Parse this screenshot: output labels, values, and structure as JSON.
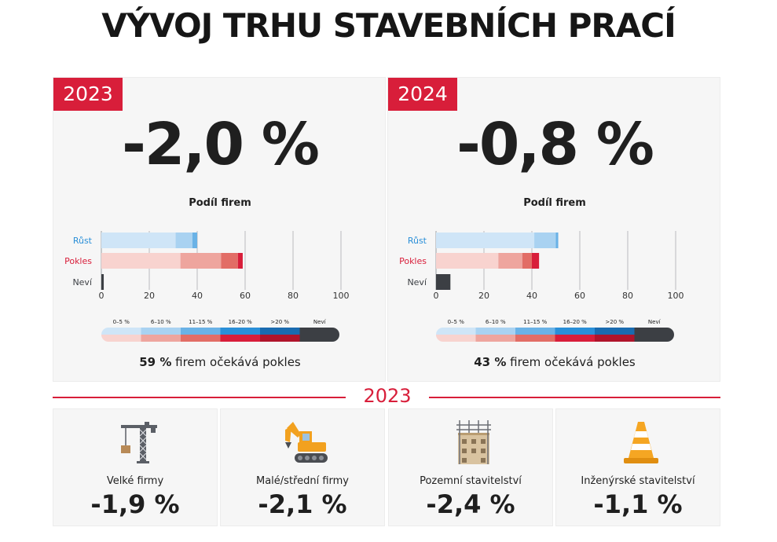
{
  "title": "VÝVOJ TRHU STAVEBNÍCH PRACÍ",
  "colors": {
    "accent_red": "#d81e3a",
    "growth_blue": "#2a8fd8",
    "dark_gray": "#3c3f44"
  },
  "panels": [
    {
      "year": "2023",
      "value": "-2,0 %",
      "share_label": "Podíl firem",
      "summary_bold": "59 %",
      "summary_rest": " firem očekává pokles"
    },
    {
      "year": "2024",
      "value": "-0,8 %",
      "share_label": "Podíl firem",
      "summary_bold": "43 %",
      "summary_rest": " firem očekává pokles"
    }
  ],
  "chart_data": [
    {
      "type": "bar",
      "orientation": "horizontal",
      "stacked": true,
      "xlabel": "",
      "ylabel": "",
      "xlim": [
        0,
        100
      ],
      "ticks": [
        0,
        20,
        40,
        60,
        80,
        100
      ],
      "categories": [
        "Růst",
        "Pokles",
        "Neví"
      ],
      "category_colors": [
        "#2a8fd8",
        "#d81e3a",
        "#3c3f44"
      ],
      "legend": [
        "0–5 %",
        "6–10 %",
        "11–15 %",
        "16–20 %",
        ">20 %",
        "Neví"
      ],
      "series": [
        {
          "name": "0–5 %",
          "values": [
            31,
            33,
            0
          ]
        },
        {
          "name": "6–10 %",
          "values": [
            7,
            17,
            0
          ]
        },
        {
          "name": "11–15 %",
          "values": [
            2,
            7,
            0
          ]
        },
        {
          "name": "16–20 %",
          "values": [
            0,
            2,
            0
          ]
        },
        {
          "name": ">20 %",
          "values": [
            0,
            0,
            0
          ]
        },
        {
          "name": "Neví",
          "values": [
            0,
            0,
            1
          ]
        }
      ]
    },
    {
      "type": "bar",
      "orientation": "horizontal",
      "stacked": true,
      "xlabel": "",
      "ylabel": "",
      "xlim": [
        0,
        100
      ],
      "ticks": [
        0,
        20,
        40,
        60,
        80,
        100
      ],
      "categories": [
        "Růst",
        "Pokles",
        "Neví"
      ],
      "category_colors": [
        "#2a8fd8",
        "#d81e3a",
        "#3c3f44"
      ],
      "legend": [
        "0–5 %",
        "6–10 %",
        "11–15 %",
        "16–20 %",
        ">20 %",
        "Neví"
      ],
      "series": [
        {
          "name": "0–5 %",
          "values": [
            41,
            26,
            0
          ]
        },
        {
          "name": "6–10 %",
          "values": [
            9,
            10,
            0
          ]
        },
        {
          "name": "11–15 %",
          "values": [
            1,
            4,
            0
          ]
        },
        {
          "name": "16–20 %",
          "values": [
            0,
            3,
            0
          ]
        },
        {
          "name": ">20 %",
          "values": [
            0,
            0,
            0
          ]
        },
        {
          "name": "Neví",
          "values": [
            0,
            0,
            6
          ]
        }
      ]
    }
  ],
  "divider_year": "2023",
  "cards": [
    {
      "icon": "crane-icon",
      "label": "Velké firmy",
      "value": "-1,9 %"
    },
    {
      "icon": "excavator-icon",
      "label": "Malé/střední firmy",
      "value": "-2,1 %"
    },
    {
      "icon": "building-icon",
      "label": "Pozemní stavitelství",
      "value": "-2,4 %"
    },
    {
      "icon": "traffic-cone-icon",
      "label": "Inženýrské stavitelství",
      "value": "-1,1 %"
    }
  ]
}
